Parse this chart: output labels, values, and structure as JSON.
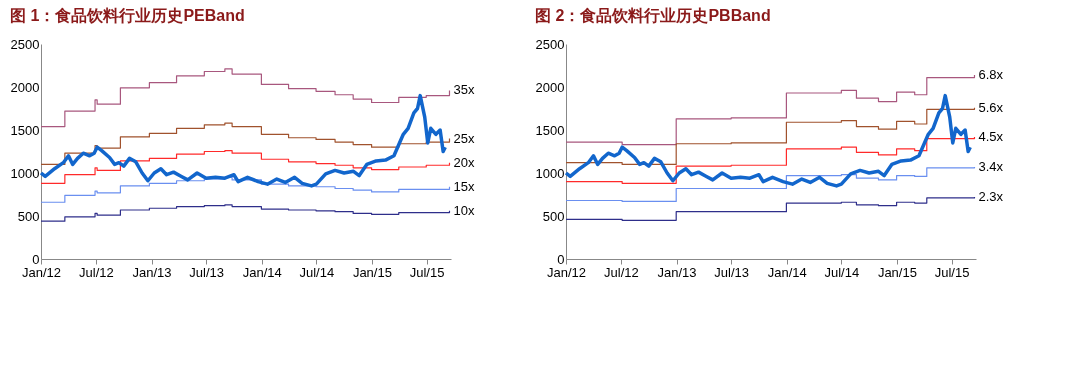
{
  "chart_data": [
    {
      "type": "line",
      "title": "图 1：食品饮料行业历史PEBand",
      "grid": false,
      "xlim": [
        "2012-01-01",
        "2015-09-20"
      ],
      "ylim": [
        0,
        2500
      ],
      "yticks": [
        0,
        500,
        1000,
        1500,
        2000,
        2500
      ],
      "xticks": [
        {
          "value": "2012-01-01",
          "label": "Jan/12"
        },
        {
          "value": "2012-07-01",
          "label": "Jul/12"
        },
        {
          "value": "2013-01-01",
          "label": "Jan/13"
        },
        {
          "value": "2013-07-01",
          "label": "Jul/13"
        },
        {
          "value": "2014-01-01",
          "label": "Jan/14"
        },
        {
          "value": "2014-07-01",
          "label": "Jul/14"
        },
        {
          "value": "2015-01-01",
          "label": "Jan/15"
        },
        {
          "value": "2015-07-01",
          "label": "Jul/15"
        }
      ],
      "series": [
        {
          "name": "35x",
          "type": "step",
          "color": "#a8577e",
          "x": [
            "2012-01-01",
            "2012-03-20",
            "2012-06-28",
            "2012-07-05",
            "2012-09-20",
            "2012-12-25",
            "2013-03-25",
            "2013-06-25",
            "2013-09-01",
            "2013-09-25",
            "2013-12-31",
            "2014-03-31",
            "2014-06-30",
            "2014-09-01",
            "2014-10-31",
            "2014-12-31",
            "2015-03-31",
            "2015-06-30",
            "2015-09-15"
          ],
          "values": [
            1540,
            1720,
            1850,
            1800,
            1990,
            2050,
            2130,
            2180,
            2210,
            2150,
            2030,
            1980,
            1950,
            1910,
            1860,
            1820,
            1880,
            1900,
            1960
          ]
        },
        {
          "name": "25x",
          "type": "step",
          "color": "#a0522d",
          "x": [
            "2012-01-01",
            "2012-03-20",
            "2012-06-28",
            "2012-07-05",
            "2012-09-20",
            "2012-12-25",
            "2013-03-25",
            "2013-06-25",
            "2013-09-01",
            "2013-09-25",
            "2013-12-31",
            "2014-03-31",
            "2014-06-30",
            "2014-09-01",
            "2014-10-31",
            "2014-12-31",
            "2015-03-31",
            "2015-06-30",
            "2015-09-15"
          ],
          "values": [
            1100,
            1230,
            1320,
            1290,
            1420,
            1460,
            1520,
            1560,
            1580,
            1540,
            1450,
            1410,
            1390,
            1360,
            1330,
            1300,
            1340,
            1360,
            1400
          ]
        },
        {
          "name": "20x",
          "type": "step",
          "color": "#ff2a2a",
          "x": [
            "2012-01-01",
            "2012-03-20",
            "2012-06-28",
            "2012-07-05",
            "2012-09-20",
            "2012-12-25",
            "2013-03-25",
            "2013-06-25",
            "2013-09-01",
            "2013-09-25",
            "2013-12-31",
            "2014-03-31",
            "2014-06-30",
            "2014-09-01",
            "2014-10-31",
            "2014-12-31",
            "2015-03-31",
            "2015-06-30",
            "2015-09-15"
          ],
          "values": [
            880,
            980,
            1060,
            1030,
            1140,
            1170,
            1220,
            1250,
            1260,
            1230,
            1160,
            1130,
            1110,
            1090,
            1060,
            1040,
            1070,
            1090,
            1120
          ]
        },
        {
          "name": "15x",
          "type": "step",
          "color": "#6a8ff0",
          "x": [
            "2012-01-01",
            "2012-03-20",
            "2012-06-28",
            "2012-07-05",
            "2012-09-20",
            "2012-12-25",
            "2013-03-25",
            "2013-06-25",
            "2013-09-01",
            "2013-09-25",
            "2013-12-31",
            "2014-03-31",
            "2014-06-30",
            "2014-09-01",
            "2014-10-31",
            "2014-12-31",
            "2015-03-31",
            "2015-06-30",
            "2015-09-15"
          ],
          "values": [
            660,
            740,
            790,
            770,
            850,
            880,
            910,
            930,
            950,
            920,
            870,
            850,
            840,
            820,
            800,
            780,
            810,
            810,
            840
          ]
        },
        {
          "name": "10x",
          "type": "step",
          "color": "#2e2e8a",
          "x": [
            "2012-01-01",
            "2012-03-20",
            "2012-06-28",
            "2012-07-05",
            "2012-09-20",
            "2012-12-25",
            "2013-03-25",
            "2013-06-25",
            "2013-09-01",
            "2013-09-25",
            "2013-12-31",
            "2014-03-31",
            "2014-06-30",
            "2014-09-01",
            "2014-10-31",
            "2014-12-31",
            "2015-03-31",
            "2015-06-30",
            "2015-09-15"
          ],
          "values": [
            440,
            490,
            530,
            510,
            570,
            590,
            610,
            620,
            630,
            610,
            580,
            570,
            560,
            550,
            530,
            520,
            540,
            540,
            560
          ]
        },
        {
          "color": "#1266cc",
          "x": [
            "2012-01-01",
            "2012-01-15",
            "2012-02-15",
            "2012-03-15",
            "2012-04-01",
            "2012-04-15",
            "2012-05-01",
            "2012-05-20",
            "2012-06-10",
            "2012-06-25",
            "2012-07-05",
            "2012-07-20",
            "2012-08-15",
            "2012-09-01",
            "2012-09-15",
            "2012-10-01",
            "2012-10-20",
            "2012-11-10",
            "2012-12-01",
            "2012-12-20",
            "2013-01-10",
            "2013-02-01",
            "2013-02-20",
            "2013-03-15",
            "2013-04-10",
            "2013-05-01",
            "2013-06-01",
            "2013-07-01",
            "2013-08-01",
            "2013-09-01",
            "2013-10-01",
            "2013-10-15",
            "2013-11-15",
            "2013-12-20",
            "2014-01-20",
            "2014-02-20",
            "2014-03-20",
            "2014-04-20",
            "2014-05-15",
            "2014-06-15",
            "2014-07-01",
            "2014-08-01",
            "2014-09-01",
            "2014-10-01",
            "2014-11-01",
            "2014-11-20",
            "2014-12-15",
            "2015-01-15",
            "2015-02-15",
            "2015-03-15",
            "2015-04-15",
            "2015-05-01",
            "2015-05-20",
            "2015-06-01",
            "2015-06-10",
            "2015-06-25",
            "2015-07-05",
            "2015-07-15",
            "2015-08-01",
            "2015-08-15",
            "2015-08-25",
            "2015-09-01"
          ],
          "values": [
            1000,
            960,
            1050,
            1120,
            1200,
            1100,
            1170,
            1230,
            1200,
            1230,
            1300,
            1260,
            1180,
            1100,
            1120,
            1080,
            1170,
            1130,
            1000,
            910,
            1000,
            1050,
            980,
            1010,
            960,
            920,
            1000,
            940,
            950,
            940,
            980,
            900,
            950,
            900,
            870,
            930,
            890,
            950,
            880,
            850,
            870,
            990,
            1030,
            1000,
            1020,
            970,
            1100,
            1140,
            1150,
            1200,
            1450,
            1520,
            1700,
            1750,
            1900,
            1650,
            1350,
            1520,
            1450,
            1500,
            1250,
            1300
          ]
        }
      ]
    },
    {
      "type": "line",
      "title": "图 2：食品饮料行业历史PBBand",
      "grid": false,
      "xlim": [
        "2012-01-01",
        "2015-09-20"
      ],
      "ylim": [
        0,
        2500
      ],
      "yticks": [
        0,
        500,
        1000,
        1500,
        2000,
        2500
      ],
      "xticks": [
        {
          "value": "2012-01-01",
          "label": "Jan/12"
        },
        {
          "value": "2012-07-01",
          "label": "Jul/12"
        },
        {
          "value": "2013-01-01",
          "label": "Jan/13"
        },
        {
          "value": "2013-07-01",
          "label": "Jul/13"
        },
        {
          "value": "2014-01-01",
          "label": "Jan/14"
        },
        {
          "value": "2014-07-01",
          "label": "Jul/14"
        },
        {
          "value": "2015-01-01",
          "label": "Jan/15"
        },
        {
          "value": "2015-07-01",
          "label": "Jul/15"
        }
      ],
      "series": [
        {
          "name": "6.8x",
          "type": "step",
          "color": "#a8577e",
          "x": [
            "2012-01-01",
            "2012-07-05",
            "2012-12-31",
            "2013-07-01",
            "2013-12-31",
            "2014-07-01",
            "2014-08-20",
            "2014-11-01",
            "2014-12-31",
            "2015-03-01",
            "2015-04-10",
            "2015-09-15"
          ],
          "values": [
            1360,
            1330,
            1630,
            1640,
            1930,
            1960,
            1870,
            1830,
            1940,
            1910,
            2110,
            2140
          ]
        },
        {
          "name": "5.6x",
          "type": "step",
          "color": "#a0522d",
          "x": [
            "2012-01-01",
            "2012-07-05",
            "2012-12-31",
            "2013-07-01",
            "2013-12-31",
            "2014-07-01",
            "2014-08-20",
            "2014-11-01",
            "2014-12-31",
            "2015-03-01",
            "2015-04-10",
            "2015-09-15"
          ],
          "values": [
            1120,
            1100,
            1340,
            1350,
            1590,
            1610,
            1540,
            1510,
            1600,
            1570,
            1740,
            1760
          ]
        },
        {
          "name": "4.5x",
          "type": "step",
          "color": "#ff2a2a",
          "x": [
            "2012-01-01",
            "2012-07-05",
            "2012-12-31",
            "2013-07-01",
            "2013-12-31",
            "2014-07-01",
            "2014-08-20",
            "2014-11-01",
            "2014-12-31",
            "2015-03-01",
            "2015-04-10",
            "2015-09-15"
          ],
          "values": [
            900,
            880,
            1080,
            1090,
            1280,
            1300,
            1240,
            1210,
            1280,
            1260,
            1400,
            1420
          ]
        },
        {
          "name": "3.4x",
          "type": "step",
          "color": "#6a8ff0",
          "x": [
            "2012-01-01",
            "2012-07-05",
            "2012-12-31",
            "2013-07-01",
            "2013-12-31",
            "2014-07-01",
            "2014-08-20",
            "2014-11-01",
            "2014-12-31",
            "2015-03-01",
            "2015-04-10",
            "2015-09-15"
          ],
          "values": [
            680,
            670,
            820,
            820,
            970,
            980,
            940,
            920,
            970,
            960,
            1060,
            1070
          ]
        },
        {
          "name": "2.3x",
          "type": "step",
          "color": "#2e2e8a",
          "x": [
            "2012-01-01",
            "2012-07-05",
            "2012-12-31",
            "2013-07-01",
            "2013-12-31",
            "2014-07-01",
            "2014-08-20",
            "2014-11-01",
            "2014-12-31",
            "2015-03-01",
            "2015-04-10",
            "2015-09-15"
          ],
          "values": [
            460,
            450,
            550,
            550,
            650,
            660,
            630,
            620,
            660,
            650,
            710,
            720
          ]
        },
        {
          "color": "#1266cc",
          "x": [
            "2012-01-01",
            "2012-01-15",
            "2012-02-15",
            "2012-03-15",
            "2012-04-01",
            "2012-04-15",
            "2012-05-01",
            "2012-05-20",
            "2012-06-10",
            "2012-06-25",
            "2012-07-05",
            "2012-07-20",
            "2012-08-15",
            "2012-09-01",
            "2012-09-15",
            "2012-10-01",
            "2012-10-20",
            "2012-11-10",
            "2012-12-01",
            "2012-12-20",
            "2013-01-10",
            "2013-02-01",
            "2013-02-20",
            "2013-03-15",
            "2013-04-10",
            "2013-05-01",
            "2013-06-01",
            "2013-07-01",
            "2013-08-01",
            "2013-09-01",
            "2013-10-01",
            "2013-10-15",
            "2013-11-15",
            "2013-12-20",
            "2014-01-20",
            "2014-02-20",
            "2014-03-20",
            "2014-04-20",
            "2014-05-15",
            "2014-06-15",
            "2014-07-01",
            "2014-08-01",
            "2014-09-01",
            "2014-10-01",
            "2014-11-01",
            "2014-11-20",
            "2014-12-15",
            "2015-01-15",
            "2015-02-15",
            "2015-03-15",
            "2015-04-15",
            "2015-05-01",
            "2015-05-20",
            "2015-06-01",
            "2015-06-10",
            "2015-06-25",
            "2015-07-05",
            "2015-07-15",
            "2015-08-01",
            "2015-08-15",
            "2015-08-25",
            "2015-09-01"
          ],
          "values": [
            1000,
            960,
            1050,
            1120,
            1200,
            1100,
            1170,
            1230,
            1200,
            1230,
            1300,
            1260,
            1180,
            1100,
            1120,
            1080,
            1170,
            1130,
            1000,
            910,
            1000,
            1050,
            980,
            1010,
            960,
            920,
            1000,
            940,
            950,
            940,
            980,
            900,
            950,
            900,
            870,
            930,
            890,
            950,
            880,
            850,
            870,
            990,
            1030,
            1000,
            1020,
            970,
            1100,
            1140,
            1150,
            1200,
            1450,
            1520,
            1700,
            1750,
            1900,
            1650,
            1350,
            1520,
            1450,
            1500,
            1250,
            1300
          ]
        }
      ]
    }
  ]
}
